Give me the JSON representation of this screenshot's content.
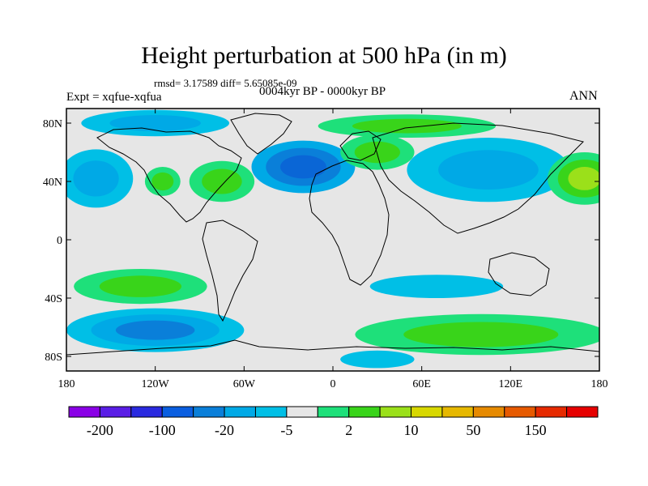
{
  "title": "Height perturbation at 500 hPa (in m)",
  "stats": "rmsd= 3.17589 diff= 5.65085e-09",
  "period": "0004kyr BP - 0000kyr BP",
  "experiment": "Expt = xqfue-xqfua",
  "season": "ANN",
  "map": {
    "lon_range": [
      -180,
      180
    ],
    "lat_range": [
      -90,
      90
    ],
    "x_ticks": [
      {
        "lon": -180,
        "label": "180"
      },
      {
        "lon": -120,
        "label": "120W"
      },
      {
        "lon": -60,
        "label": "60W"
      },
      {
        "lon": 0,
        "label": "0"
      },
      {
        "lon": 60,
        "label": "60E"
      },
      {
        "lon": 120,
        "label": "120E"
      },
      {
        "lon": 180,
        "label": "180"
      }
    ],
    "y_ticks": [
      {
        "lat": 80,
        "label": "80N"
      },
      {
        "lat": 40,
        "label": "40N"
      },
      {
        "lat": 0,
        "label": "0"
      },
      {
        "lat": -40,
        "label": "40S"
      },
      {
        "lat": -80,
        "label": "80S"
      }
    ],
    "background_color": "#e6e6e6",
    "anomaly_regions": [
      {
        "name": "n-atlantic-low",
        "lon": -20,
        "lat": 50,
        "rlon": 35,
        "rlat": 18,
        "levels": [
          "#00a9e6",
          "#0a7fd9",
          "#0a66d6"
        ]
      },
      {
        "name": "scandinavia-high",
        "lon": 30,
        "lat": 60,
        "rlon": 25,
        "rlat": 12,
        "levels": [
          "#1ee07a",
          "#39d41a"
        ]
      },
      {
        "name": "asia-low",
        "lon": 105,
        "lat": 48,
        "rlon": 55,
        "rlat": 22,
        "levels": [
          "#00bfe6",
          "#00a9e6"
        ]
      },
      {
        "name": "pacific-high",
        "lon": 170,
        "lat": 42,
        "rlon": 25,
        "rlat": 18,
        "levels": [
          "#1ee07a",
          "#39d41a",
          "#9be01a"
        ]
      },
      {
        "name": "pacific-low",
        "lon": -160,
        "lat": 42,
        "rlon": 25,
        "rlat": 20,
        "levels": [
          "#00bfe6",
          "#00a9e6"
        ]
      },
      {
        "name": "n-america-high",
        "lon": -75,
        "lat": 40,
        "rlon": 22,
        "rlat": 14,
        "levels": [
          "#1ee07a",
          "#39d41a"
        ]
      },
      {
        "name": "central-high",
        "lon": -115,
        "lat": 40,
        "rlon": 12,
        "rlat": 10,
        "levels": [
          "#1ee07a",
          "#39d41a"
        ]
      },
      {
        "name": "arctic-high",
        "lon": 50,
        "lat": 78,
        "rlon": 60,
        "rlat": 8,
        "levels": [
          "#1ee07a",
          "#39d41a"
        ]
      },
      {
        "name": "arctic-low",
        "lon": -120,
        "lat": 80,
        "rlon": 50,
        "rlat": 9,
        "levels": [
          "#00bfe6",
          "#00a9e6"
        ]
      },
      {
        "name": "s-pacific-high",
        "lon": -130,
        "lat": -32,
        "rlon": 45,
        "rlat": 12,
        "levels": [
          "#1ee07a",
          "#39d41a"
        ]
      },
      {
        "name": "s-pacific-low",
        "lon": -120,
        "lat": -62,
        "rlon": 60,
        "rlat": 15,
        "levels": [
          "#00bfe6",
          "#00a9e6",
          "#0a7fd9"
        ]
      },
      {
        "name": "s-indian-low",
        "lon": 70,
        "lat": -32,
        "rlon": 45,
        "rlat": 8,
        "levels": [
          "#00bfe6"
        ]
      },
      {
        "name": "southern-high",
        "lon": 100,
        "lat": -65,
        "rlon": 85,
        "rlat": 14,
        "levels": [
          "#1ee07a",
          "#39d41a"
        ]
      },
      {
        "name": "antarctic-low",
        "lon": 30,
        "lat": -82,
        "rlon": 25,
        "rlat": 6,
        "levels": [
          "#00bfe6"
        ]
      }
    ]
  },
  "colorbar": {
    "colors": [
      "#8a00e6",
      "#5a1ee6",
      "#2a2ae0",
      "#0a5ee0",
      "#0a7fd9",
      "#00a9e6",
      "#00bfe6",
      "#e6e6e6",
      "#1ee07a",
      "#39d41a",
      "#9be01a",
      "#d8d800",
      "#e6b800",
      "#e68a00",
      "#e65a00",
      "#e62a00",
      "#e60000"
    ],
    "labels": [
      {
        "label": "-200",
        "index": 1
      },
      {
        "label": "-100",
        "index": 3
      },
      {
        "label": "-20",
        "index": 5
      },
      {
        "label": "-5",
        "index": 7
      },
      {
        "label": "2",
        "index": 9
      },
      {
        "label": "10",
        "index": 11
      },
      {
        "label": "50",
        "index": 13
      },
      {
        "label": "150",
        "index": 15
      }
    ]
  }
}
